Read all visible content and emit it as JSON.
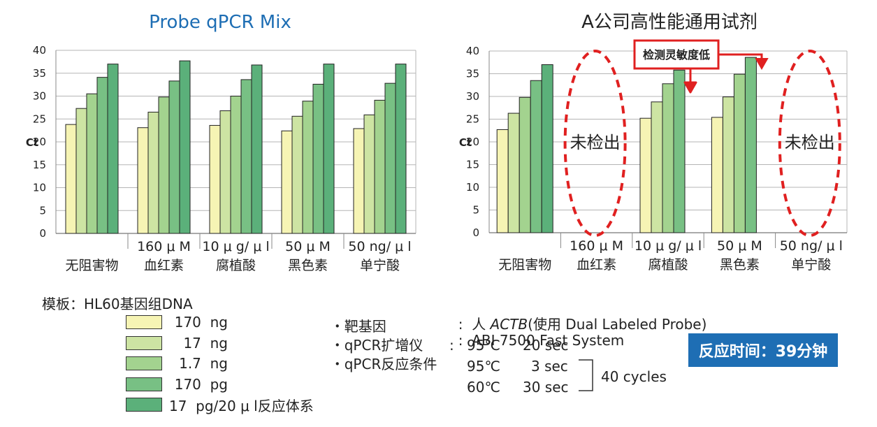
{
  "chart_data": [
    {
      "type": "bar",
      "title": "Probe qPCR Mix",
      "ylabel": "Ct",
      "ylim": [
        0,
        40
      ],
      "yticks": [
        0,
        5,
        10,
        15,
        20,
        25,
        30,
        35,
        40
      ],
      "grid": true,
      "categories": [
        {
          "line1": "",
          "line2": "无阻害物"
        },
        {
          "line1": "160 μ M",
          "line2": "血红素"
        },
        {
          "line1": "10 μ g/ μ l",
          "line2": "腐植酸"
        },
        {
          "line1": "50 μ M",
          "line2": "黑色素"
        },
        {
          "line1": "50 ng/ μ l",
          "line2": "单宁酸"
        }
      ],
      "series": [
        {
          "name": "170 ng",
          "values": [
            23.8,
            23.1,
            23.6,
            22.4,
            22.9
          ]
        },
        {
          "name": "17 ng",
          "values": [
            27.3,
            26.5,
            26.8,
            25.6,
            25.9
          ]
        },
        {
          "name": "1.7 ng",
          "values": [
            30.5,
            29.8,
            30.0,
            28.9,
            29.1
          ]
        },
        {
          "name": "170 pg",
          "values": [
            34.1,
            33.3,
            33.6,
            32.6,
            32.8
          ]
        },
        {
          "name": "17 pg/20 μ l反应体系",
          "values": [
            37.0,
            37.7,
            36.8,
            37.0,
            37.0
          ]
        }
      ]
    },
    {
      "type": "bar",
      "title": "A公司高性能通用试剂",
      "ylabel": "Ct",
      "ylim": [
        0,
        40
      ],
      "yticks": [
        0,
        5,
        10,
        15,
        20,
        25,
        30,
        35,
        40
      ],
      "grid": true,
      "categories": [
        {
          "line1": "",
          "line2": "无阻害物"
        },
        {
          "line1": "160 μ M",
          "line2": "血红素"
        },
        {
          "line1": "10 μ g/ μ l",
          "line2": "腐植酸"
        },
        {
          "line1": "50 μ M",
          "line2": "黑色素"
        },
        {
          "line1": "50 ng/ μ l",
          "line2": "单宁酸"
        }
      ],
      "series": [
        {
          "name": "170 ng",
          "values": [
            22.7,
            null,
            25.2,
            25.4,
            null
          ]
        },
        {
          "name": "17 ng",
          "values": [
            26.3,
            null,
            28.8,
            29.9,
            null
          ]
        },
        {
          "name": "1.7 ng",
          "values": [
            29.8,
            null,
            32.8,
            34.9,
            null
          ]
        },
        {
          "name": "170 pg",
          "values": [
            33.5,
            null,
            35.8,
            38.6,
            null
          ]
        },
        {
          "name": "17 pg/20 μ l反应体系",
          "values": [
            37.0,
            null,
            null,
            null,
            null
          ]
        }
      ],
      "annotations": {
        "not_detected": "未检出",
        "not_detected_categories": [
          1,
          4
        ],
        "low_sensitivity": "检测灵敏度低"
      }
    }
  ],
  "colors": {
    "series": [
      "#f6f4b4",
      "#cde4a3",
      "#a3d38f",
      "#78c084",
      "#5bb07a"
    ],
    "title_left": "#1e6eb4",
    "annotation_red": "#e02020",
    "badge": "#1e6eb4"
  },
  "legend": {
    "title": "模板：HL60基因组DNA",
    "items": [
      "170  ng",
      "17  ng",
      "1.7  ng",
      "170  pg",
      "17  pg/20 μ l反应体系"
    ]
  },
  "conditions": {
    "target_label": "靶基因",
    "target_value_pre": "人",
    "target_value_gene": "ACTB",
    "target_value_post": "(使用 Dual Labeled Probe)",
    "instrument_label": "qPCR扩增仪",
    "instrument_value": "ABI 7500 Fast System",
    "program_label": "qPCR反应条件",
    "steps": [
      {
        "temp": "95℃",
        "time": "20 sec"
      },
      {
        "temp": "95℃",
        "time": "3 sec"
      },
      {
        "temp": "60℃",
        "time": "30 sec"
      }
    ],
    "cycles": "40 cycles",
    "bullet": "・",
    "colon": ":"
  },
  "badge": "反应时间：39分钟"
}
